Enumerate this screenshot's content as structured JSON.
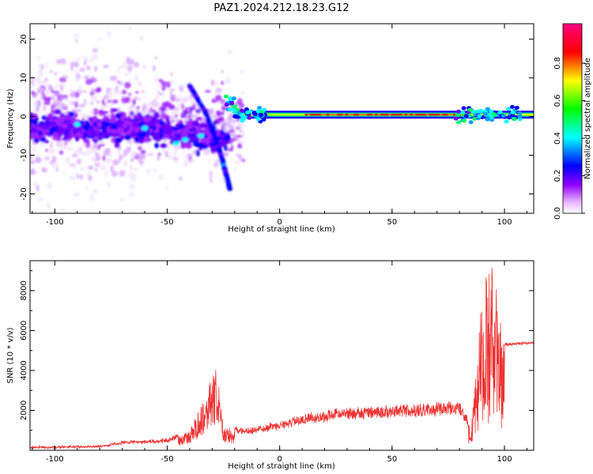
{
  "title": "PAZ1.2024.212.18.23.G12",
  "colors": {
    "snr_line": "#ee3333",
    "axis": "#000000",
    "background": "#ffffff"
  },
  "chart_data": [
    {
      "type": "heatmap",
      "name": "spectrogram",
      "xlabel": "Height of straight line (km)",
      "ylabel": "Frequency (Hz)",
      "xlim": [
        -111,
        113
      ],
      "ylim": [
        -25,
        24
      ],
      "x_ticks": [
        -100,
        -50,
        0,
        50,
        100
      ],
      "y_ticks": [
        -20,
        -10,
        0,
        10,
        20
      ],
      "colorbar": {
        "label": "Normalized spectral amplitude",
        "range": [
          0,
          1
        ],
        "ticks": [
          0.0,
          0.2,
          0.4,
          0.6,
          0.8
        ],
        "colormap": [
          "#ffffff",
          "#a000ff",
          "#0000ff",
          "#00ffff",
          "#00ff00",
          "#ffff00",
          "#ff0000",
          "#ff0080"
        ]
      },
      "description_features": {
        "carrier_line_frequency_hz": 0.5,
        "carrier_line_start_km": -20,
        "tracking_track_km": [
          [
            -40,
            8
          ],
          [
            -32,
            0
          ],
          [
            -26,
            -10
          ],
          [
            -22,
            -19
          ]
        ]
      }
    },
    {
      "type": "line",
      "name": "snr",
      "xlabel": "Height of straight line (km)",
      "ylabel": "SNR (10 * v/v)",
      "xlim": [
        -111,
        113
      ],
      "ylim": [
        0,
        9500
      ],
      "x_ticks": [
        -100,
        -50,
        0,
        50,
        100
      ],
      "y_ticks": [
        2000,
        4000,
        6000,
        8000
      ],
      "envelope_points": [
        {
          "x": -111,
          "y": 150
        },
        {
          "x": -80,
          "y": 200
        },
        {
          "x": -70,
          "y": 400
        },
        {
          "x": -50,
          "y": 500
        },
        {
          "x": -40,
          "y": 1000
        },
        {
          "x": -28,
          "y": 4200
        },
        {
          "x": -25,
          "y": 1200
        },
        {
          "x": -15,
          "y": 1000
        },
        {
          "x": 0,
          "y": 1300
        },
        {
          "x": 10,
          "y": 1600
        },
        {
          "x": 25,
          "y": 1900
        },
        {
          "x": 50,
          "y": 2050
        },
        {
          "x": 80,
          "y": 2250
        },
        {
          "x": 85,
          "y": 1200
        },
        {
          "x": 90,
          "y": 8300
        },
        {
          "x": 95,
          "y": 9400
        },
        {
          "x": 100,
          "y": 5300
        },
        {
          "x": 113,
          "y": 5400
        }
      ]
    }
  ]
}
